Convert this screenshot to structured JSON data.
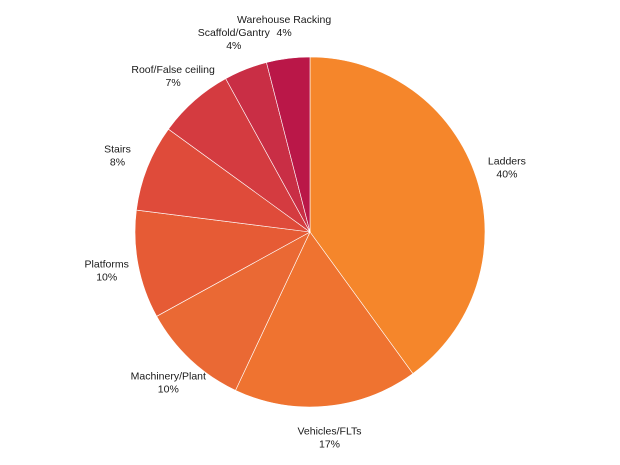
{
  "chart_data": {
    "type": "pie",
    "title": "",
    "categories": [
      "Ladders",
      "Vehicles/FLTs",
      "Machinery/Plant",
      "Platforms",
      "Stairs",
      "Roof/False ceiling",
      "Scaffold/Gantry",
      "Warehouse Racking"
    ],
    "values": [
      40,
      17,
      10,
      10,
      8,
      7,
      4,
      4
    ],
    "value_labels": [
      "40%",
      "17%",
      "10%",
      "10%",
      "8%",
      "7%",
      "4%",
      "4%"
    ],
    "colors": [
      "#f5862b",
      "#ef7330",
      "#ea6934",
      "#e65b35",
      "#df4b3a",
      "#d43b40",
      "#c92e45",
      "#ba1748"
    ],
    "start_angle_deg": 0,
    "direction": "clockwise",
    "legend": "none"
  }
}
